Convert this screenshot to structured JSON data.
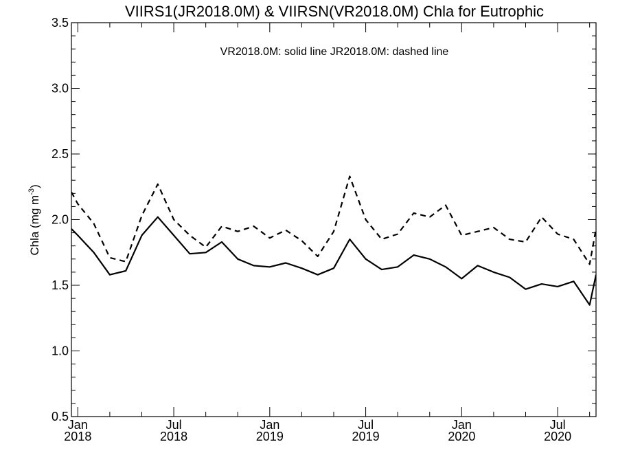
{
  "chart_data": {
    "type": "line",
    "title": "VIIRS1(JR2018.0M) & VIIRSN(VR2018.0M)  Chla for Eutrophic",
    "ylabel": "Chla (mg m",
    "ylabel_sup": "-3",
    "ylabel_close": ")",
    "annotation": "VR2018.0M: solid line   JR2018.0M: dashed line",
    "ylim": [
      0.5,
      3.5
    ],
    "xlim": [
      -0.4,
      32.4
    ],
    "yticks": [
      "0.5",
      "1.0",
      "1.5",
      "2.0",
      "2.5",
      "3.0",
      "3.5"
    ],
    "yticks_values": [
      0.5,
      1.0,
      1.5,
      2.0,
      2.5,
      3.0,
      3.5
    ],
    "xticks": [
      {
        "month": "Jan",
        "year": "2018",
        "pos": 0
      },
      {
        "month": "Jul",
        "year": "2018",
        "pos": 6
      },
      {
        "month": "Jan",
        "year": "2019",
        "pos": 12
      },
      {
        "month": "Jul",
        "year": "2019",
        "pos": 18
      },
      {
        "month": "Jan",
        "year": "2020",
        "pos": 24
      },
      {
        "month": "Jul",
        "year": "2020",
        "pos": 30
      }
    ],
    "grid": false,
    "series": [
      {
        "name": "VR2018.0M",
        "style": "solid",
        "color": "#000000",
        "x": [
          -0.4,
          0,
          1,
          2,
          3,
          4,
          5,
          6,
          7,
          8,
          9,
          10,
          11,
          12,
          13,
          14,
          15,
          16,
          17,
          18,
          19,
          20,
          21,
          22,
          23,
          24,
          25,
          26,
          27,
          28,
          29,
          30,
          31,
          32,
          32.4
        ],
        "values": [
          1.93,
          1.88,
          1.75,
          1.58,
          1.61,
          1.88,
          2.02,
          1.88,
          1.74,
          1.75,
          1.83,
          1.7,
          1.65,
          1.64,
          1.67,
          1.63,
          1.58,
          1.63,
          1.85,
          1.7,
          1.62,
          1.64,
          1.73,
          1.7,
          1.64,
          1.55,
          1.65,
          1.6,
          1.56,
          1.47,
          1.51,
          1.49,
          1.53,
          1.35,
          1.58
        ]
      },
      {
        "name": "JR2018.0M",
        "style": "dashed",
        "color": "#000000",
        "x": [
          -0.4,
          0,
          1,
          2,
          3,
          4,
          5,
          6,
          7,
          8,
          9,
          10,
          11,
          12,
          13,
          14,
          15,
          16,
          17,
          18,
          19,
          20,
          21,
          22,
          23,
          24,
          25,
          26,
          27,
          28,
          29,
          30,
          31,
          32,
          32.4
        ],
        "values": [
          2.21,
          2.12,
          1.97,
          1.71,
          1.68,
          2.03,
          2.27,
          2.0,
          1.88,
          1.79,
          1.95,
          1.91,
          1.95,
          1.86,
          1.92,
          1.84,
          1.72,
          1.91,
          2.33,
          2.0,
          1.85,
          1.89,
          2.05,
          2.02,
          2.11,
          1.88,
          1.91,
          1.94,
          1.85,
          1.83,
          2.02,
          1.89,
          1.85,
          1.66,
          1.93
        ]
      }
    ]
  }
}
